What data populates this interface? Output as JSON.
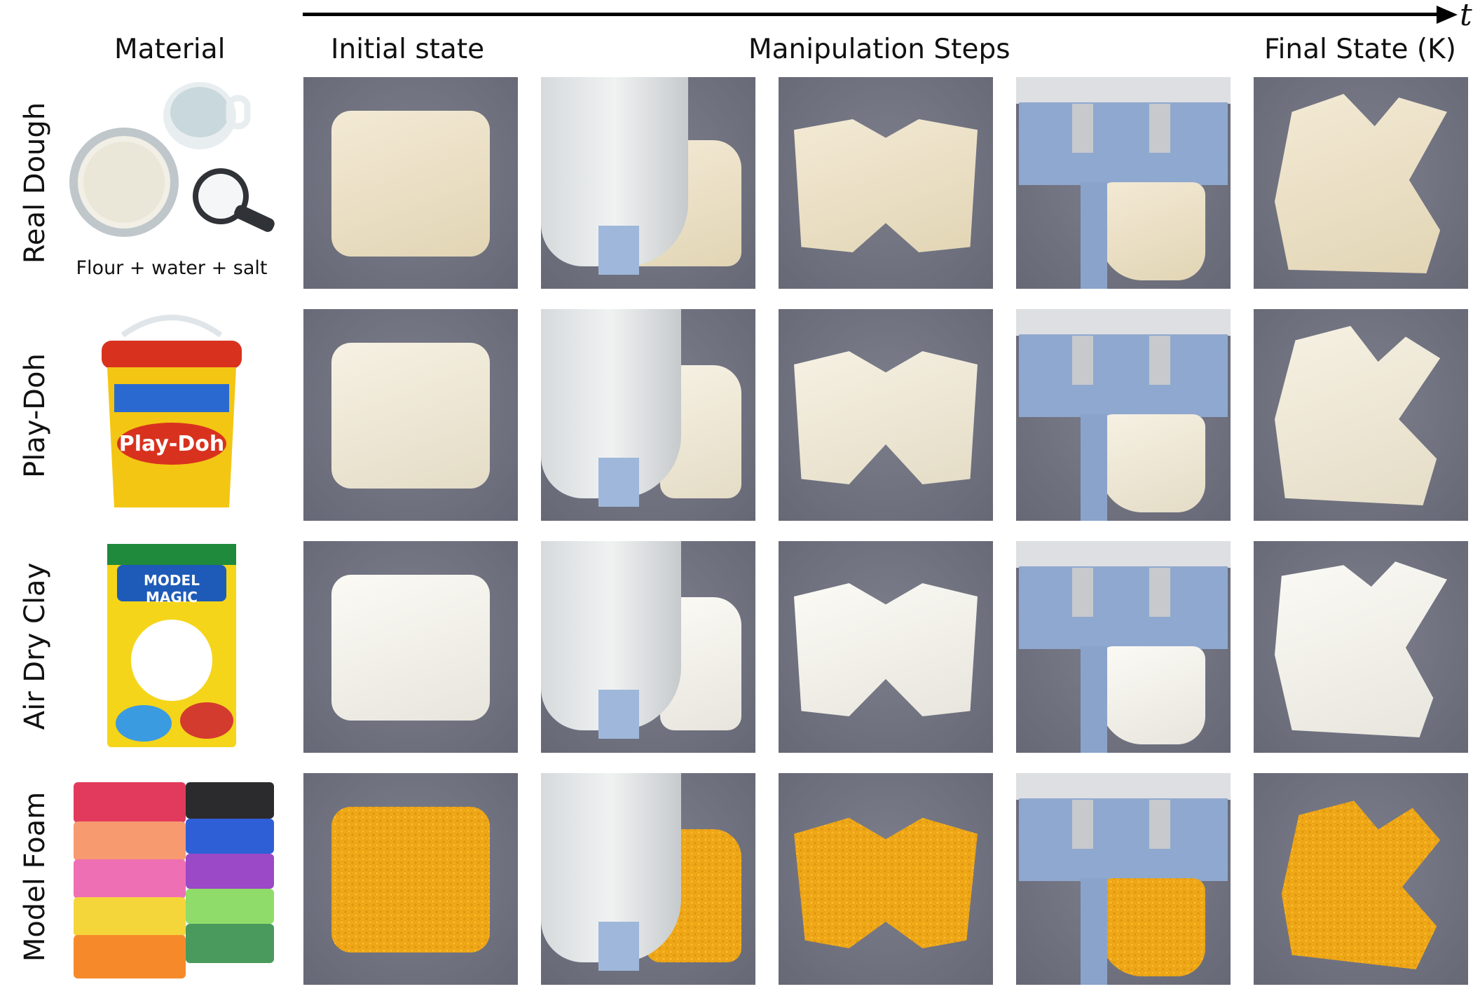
{
  "timeline": {
    "label": "t"
  },
  "headers": {
    "material": "Material",
    "initial": "Initial state",
    "steps": "Manipulation Steps",
    "final": "Final State (K)"
  },
  "rows": [
    {
      "label": "Real Dough",
      "caption": "Flour + water + salt",
      "tone": "tan"
    },
    {
      "label": "Play-Doh",
      "caption": "",
      "tone": "cream",
      "product_text": "Play-Doh"
    },
    {
      "label": "Air Dry Clay",
      "caption": "",
      "tone": "white",
      "product_text": "MODEL MAGIC"
    },
    {
      "label": "Model Foam",
      "caption": "",
      "tone": "foam"
    }
  ],
  "colors": {
    "background": "#6f7180",
    "gripper_blue": "#8fa8cf",
    "foam": "#f3ad1c"
  }
}
